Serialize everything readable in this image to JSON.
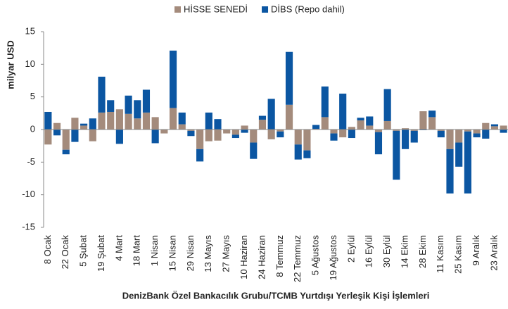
{
  "chart_data": {
    "type": "stacked_bar",
    "ylabel": "milyar USD",
    "xlabel": "DenizBank Özel Bankacılık Grubu/TCMB Yurtdışı Yerleşik Kişi İşlemleri",
    "categories": [
      "8 Ocak",
      null,
      "22 Ocak",
      null,
      "5 Şubat",
      null,
      "19 Şubat",
      null,
      "4 Mart",
      null,
      "18 Mart",
      null,
      "1 Nisan",
      null,
      "15 Nisan",
      null,
      "29 Nisan",
      null,
      "13 Mayıs",
      null,
      "27 Mayıs",
      null,
      "10 Haziran",
      null,
      "24 Haziran",
      null,
      "8 Temmuz",
      null,
      "22 Temmuz",
      null,
      "5 Ağustos",
      null,
      "19 Ağustos",
      null,
      "2 Eylül",
      null,
      "16 Eylül",
      null,
      "30 Eylül",
      null,
      "14 Ekim",
      null,
      "28 Ekim",
      null,
      "11 Kasım",
      null,
      "25 Kasım",
      null,
      "9 Aralık",
      null,
      "23 Aralık",
      null
    ],
    "series": [
      {
        "name": "HİSSE SENEDİ",
        "color": "#a48b7c",
        "values": [
          -2.3,
          1.0,
          -3.1,
          1.8,
          0.6,
          -1.8,
          2.6,
          2.7,
          3.1,
          2.4,
          1.7,
          2.6,
          1.9,
          -0.6,
          3.3,
          0.8,
          -0.2,
          -3.0,
          -1.8,
          -1.7,
          -0.6,
          -0.8,
          0.6,
          -2.0,
          1.5,
          -1.5,
          -0.3,
          3.8,
          -2.3,
          -3.2,
          0.1,
          1.9,
          -0.6,
          -1.2,
          0.4,
          1.4,
          0.6,
          -0.4,
          1.3,
          -0.2,
          0.2,
          -0.2,
          2.8,
          1.9,
          -0.2,
          -3.0,
          -2.0,
          -0.3,
          -0.6,
          1.0,
          0.5,
          0.6
        ]
      },
      {
        "name": "DİBS (Repo dahil)",
        "color": "#0b56a2",
        "values": [
          2.7,
          -0.9,
          -0.7,
          -1.9,
          0.3,
          1.7,
          5.5,
          1.8,
          -2.2,
          2.8,
          2.8,
          3.5,
          -2.1,
          0,
          8.8,
          1.8,
          -0.8,
          -1.9,
          2.6,
          1.6,
          0,
          -0.5,
          -0.5,
          -2.5,
          0.6,
          4.7,
          -0.9,
          8.1,
          -2.3,
          -1.2,
          0.6,
          4.7,
          -1.1,
          5.5,
          -1.3,
          0.4,
          1.4,
          -3.4,
          4.9,
          -7.5,
          -3.0,
          -1.8,
          -0.1,
          1.0,
          -1.0,
          -6.8,
          -3.7,
          -9.5,
          -0.6,
          -1.4,
          0.3,
          -0.5
        ]
      }
    ],
    "ylim": [
      -15,
      15
    ],
    "yticks": [
      -15,
      -10,
      -5,
      0,
      5,
      10,
      15
    ],
    "legend": "top"
  }
}
